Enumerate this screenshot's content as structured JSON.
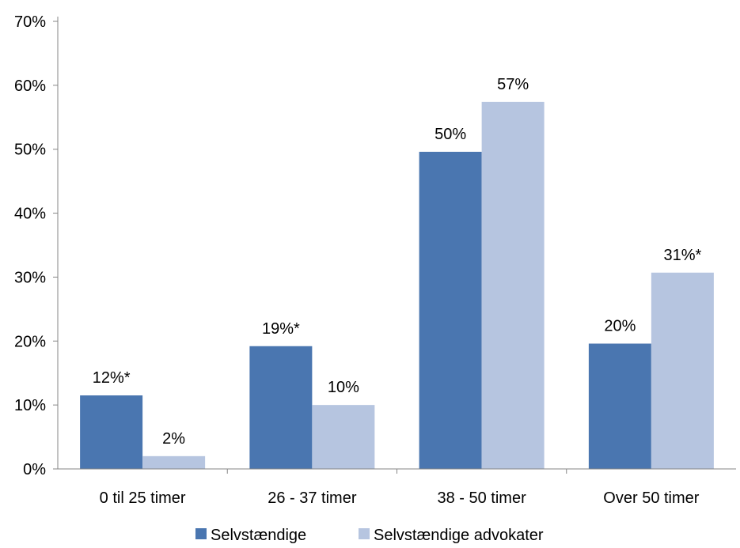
{
  "chart_data": {
    "type": "bar",
    "categories": [
      "0 til 25 timer",
      "26 - 37 timer",
      "38 - 50 timer",
      "Over 50 timer"
    ],
    "series": [
      {
        "name": "Selvstændige",
        "color": "#4a76b0",
        "values": [
          11.5,
          19.2,
          49.6,
          19.6
        ],
        "labels": [
          "12%*",
          "19%*",
          "50%",
          "20%"
        ]
      },
      {
        "name": "Selvstændige advokater",
        "color": "#b6c5e0",
        "values": [
          2,
          10,
          57.4,
          30.7
        ],
        "labels": [
          "2%",
          "10%",
          "57%",
          "31%*"
        ]
      }
    ],
    "ylim": [
      0,
      70
    ],
    "yticks": [
      0,
      10,
      20,
      30,
      40,
      50,
      60,
      70
    ],
    "ytick_labels": [
      "0%",
      "10%",
      "20%",
      "30%",
      "40%",
      "50%",
      "60%",
      "70%"
    ],
    "grid": false,
    "legend": "bottom"
  }
}
